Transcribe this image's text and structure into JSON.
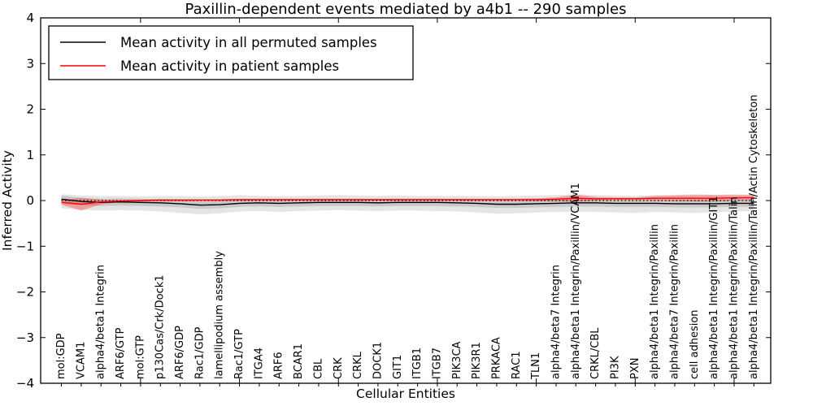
{
  "figure": {
    "title": "Paxillin-dependent events mediated by a4b1 -- 290 samples"
  },
  "axes": {
    "xlabel": "Cellular Entities",
    "ylabel": "Inferred Activity",
    "ytick_labels": [
      "4",
      "3",
      "2",
      "1",
      "0",
      "−1",
      "−2",
      "−3",
      "−4"
    ],
    "ytick_values": [
      4,
      3,
      2,
      1,
      0,
      -1,
      -2,
      -3,
      -4
    ],
    "xtick_major_values": [
      5,
      10,
      15,
      20,
      25,
      30,
      35
    ]
  },
  "legend": {
    "entries": [
      {
        "label": "Mean activity in all permuted samples",
        "color": "#000000"
      },
      {
        "label": "Mean activity in patient samples",
        "color": "#ff0000"
      }
    ]
  },
  "colors": {
    "permuted_line": "#000000",
    "patient_line": "#ff0000",
    "permuted_band_fill": "#000000",
    "patient_band_fill": "#ff0000",
    "spine": "#000000"
  },
  "chart_data": {
    "type": "line",
    "title": "Paxillin-dependent events mediated by a4b1 -- 290 samples",
    "xlabel": "Cellular Entities",
    "ylabel": "Inferred Activity",
    "ylim": [
      -4,
      4
    ],
    "grid": false,
    "legend_position": "upper left",
    "reference_line": {
      "y": 0,
      "style": "dotted",
      "color": "#000000"
    },
    "categories": [
      "mol:GDP",
      "VCAM1",
      "alpha4/beta1 Integrin",
      "ARF6/GTP",
      "mol:GTP",
      "p130Cas/Crk/Dock1",
      "ARF6/GDP",
      "Rac1/GDP",
      "lamellipodium assembly",
      "Rac1/GTP",
      "ITGA4",
      "ARF6",
      "BCAR1",
      "CBL",
      "CRK",
      "CRKL",
      "DOCK1",
      "GIT1",
      "ITGB1",
      "ITGB7",
      "PIK3CA",
      "PIK3R1",
      "PRKACA",
      "RAC1",
      "TLN1",
      "alpha4/beta7 Integrin",
      "alpha4/beta1 Integrin/Paxillin/VCAM1",
      "CRKL/CBL",
      "PI3K",
      "PXN",
      "alpha4/beta1 Integrin/Paxillin",
      "alpha4/beta7 Integrin/Paxillin",
      "cell adhesion",
      "alpha4/beta1 Integrin/Paxillin/GIT1",
      "alpha4/beta1 Integrin/Paxillin/Talin",
      "alpha4/beta1 Integrin/Paxillin/Talin/Actin Cytoskeleton"
    ],
    "series": [
      {
        "name": "Mean activity in all permuted samples",
        "color": "#000000",
        "values": [
          0.03,
          -0.02,
          -0.04,
          -0.03,
          -0.04,
          -0.05,
          -0.07,
          -0.1,
          -0.09,
          -0.06,
          -0.05,
          -0.06,
          -0.05,
          -0.04,
          -0.04,
          -0.04,
          -0.05,
          -0.04,
          -0.04,
          -0.04,
          -0.05,
          -0.06,
          -0.08,
          -0.08,
          -0.07,
          -0.06,
          -0.05,
          -0.05,
          -0.06,
          -0.06,
          -0.06,
          -0.07,
          -0.07,
          -0.07,
          -0.06,
          -0.06
        ],
        "band_outer_upper": [
          0.14,
          0.11,
          0.1,
          0.1,
          0.09,
          0.1,
          0.1,
          0.09,
          0.1,
          0.12,
          0.1,
          0.09,
          0.1,
          0.11,
          0.12,
          0.11,
          0.1,
          0.11,
          0.1,
          0.1,
          0.1,
          0.1,
          0.09,
          0.1,
          0.11,
          0.12,
          0.14,
          0.12,
          0.11,
          0.1,
          0.12,
          0.13,
          0.14,
          0.13,
          0.14,
          0.13
        ],
        "band_outer_lower": [
          -0.17,
          -0.2,
          -0.22,
          -0.21,
          -0.22,
          -0.24,
          -0.27,
          -0.3,
          -0.28,
          -0.24,
          -0.23,
          -0.25,
          -0.23,
          -0.22,
          -0.21,
          -0.22,
          -0.23,
          -0.22,
          -0.22,
          -0.23,
          -0.24,
          -0.26,
          -0.29,
          -0.28,
          -0.26,
          -0.25,
          -0.24,
          -0.25,
          -0.26,
          -0.27,
          -0.25,
          -0.26,
          -0.27,
          -0.26,
          -0.24,
          -0.23
        ],
        "band_inner_upper": [
          0.11,
          0.06,
          0.04,
          0.05,
          0.04,
          0.03,
          0.01,
          -0.02,
          -0.01,
          0.02,
          0.03,
          0.02,
          0.03,
          0.04,
          0.04,
          0.04,
          0.03,
          0.04,
          0.04,
          0.04,
          0.03,
          0.02,
          0.0,
          0.0,
          0.01,
          0.02,
          0.03,
          0.03,
          0.02,
          0.02,
          0.02,
          0.01,
          0.01,
          0.01,
          0.02,
          0.02
        ],
        "band_inner_lower": [
          -0.05,
          -0.1,
          -0.12,
          -0.11,
          -0.12,
          -0.13,
          -0.15,
          -0.18,
          -0.17,
          -0.14,
          -0.13,
          -0.14,
          -0.13,
          -0.12,
          -0.12,
          -0.12,
          -0.13,
          -0.12,
          -0.12,
          -0.12,
          -0.13,
          -0.14,
          -0.16,
          -0.16,
          -0.15,
          -0.14,
          -0.13,
          -0.13,
          -0.14,
          -0.14,
          -0.14,
          -0.15,
          -0.15,
          -0.15,
          -0.14,
          -0.14
        ]
      },
      {
        "name": "Mean activity in patient samples",
        "color": "#ff0000",
        "values": [
          -0.04,
          -0.08,
          -0.03,
          -0.01,
          0.0,
          0.01,
          0.01,
          0.01,
          0.01,
          0.02,
          0.02,
          0.02,
          0.02,
          0.02,
          0.02,
          0.02,
          0.02,
          0.02,
          0.02,
          0.02,
          0.02,
          0.02,
          0.02,
          0.02,
          0.02,
          0.03,
          0.05,
          0.04,
          0.04,
          0.04,
          0.05,
          0.05,
          0.05,
          0.05,
          0.06,
          0.06
        ],
        "band_half_width": [
          0.05,
          0.14,
          0.05,
          0.02,
          0.02,
          0.02,
          0.02,
          0.02,
          0.02,
          0.02,
          0.02,
          0.02,
          0.02,
          0.02,
          0.02,
          0.02,
          0.02,
          0.02,
          0.02,
          0.02,
          0.02,
          0.02,
          0.02,
          0.02,
          0.03,
          0.04,
          0.08,
          0.04,
          0.03,
          0.03,
          0.05,
          0.06,
          0.07,
          0.07,
          0.06,
          0.06
        ]
      }
    ]
  }
}
